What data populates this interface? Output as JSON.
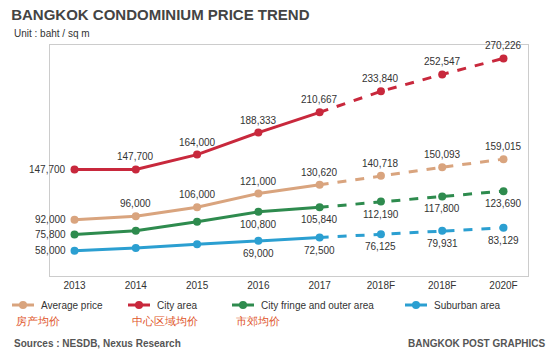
{
  "chart_data": {
    "type": "line",
    "title": "BANGKOK CONDOMINIUM PRICE TREND",
    "subtitle": "Unit : baht / sq m",
    "categories": [
      "2013",
      "2014",
      "2015",
      "2016",
      "2017",
      "2018F",
      "2018F",
      "2020F"
    ],
    "series": [
      {
        "name": "Average price",
        "color": "#d9a47e",
        "values": [
          92000,
          96000,
          106000,
          121000,
          130620,
          140718,
          150093,
          159015
        ],
        "value_labels": [
          "92,000",
          "96,000",
          "106,000",
          "121,000",
          "130,620",
          "140,718",
          "150,093",
          "159,015"
        ]
      },
      {
        "name": "City area",
        "color": "#c8283c",
        "values": [
          147700,
          147700,
          164000,
          188333,
          210667,
          233840,
          252547,
          270226
        ],
        "value_labels": [
          "147,700",
          "147,700",
          "164,000",
          "188,333",
          "210,667",
          "233,840",
          "252,547",
          "270,226"
        ]
      },
      {
        "name": "City fringe and outer area",
        "color": "#2e8b4e",
        "values": [
          75800,
          80000,
          90000,
          100800,
          105840,
          112190,
          117800,
          123690
        ],
        "value_labels": [
          "75,800",
          null,
          null,
          "100,800",
          "105,840",
          "112,190",
          "117,800",
          "123,690"
        ]
      },
      {
        "name": "Suburban area",
        "color": "#2b9fd1",
        "values": [
          58000,
          61000,
          65000,
          69000,
          72500,
          76125,
          79931,
          83129
        ],
        "value_labels": [
          "58,000",
          null,
          null,
          "69,000",
          "72,500",
          "76,125",
          "79,931",
          "83,129"
        ]
      }
    ],
    "ylim": [
      30000,
      285000
    ],
    "yticks": [],
    "tick_labels": "x",
    "grid": false,
    "data_labels": true,
    "legend": "bottom",
    "marker": "circle",
    "annotations": [
      "房产均价",
      "中心区域均价",
      "市郊均价"
    ],
    "source": "Sources : NESDB, Nexus Research",
    "credit": "BANGKOK POST GRAPHICS"
  }
}
